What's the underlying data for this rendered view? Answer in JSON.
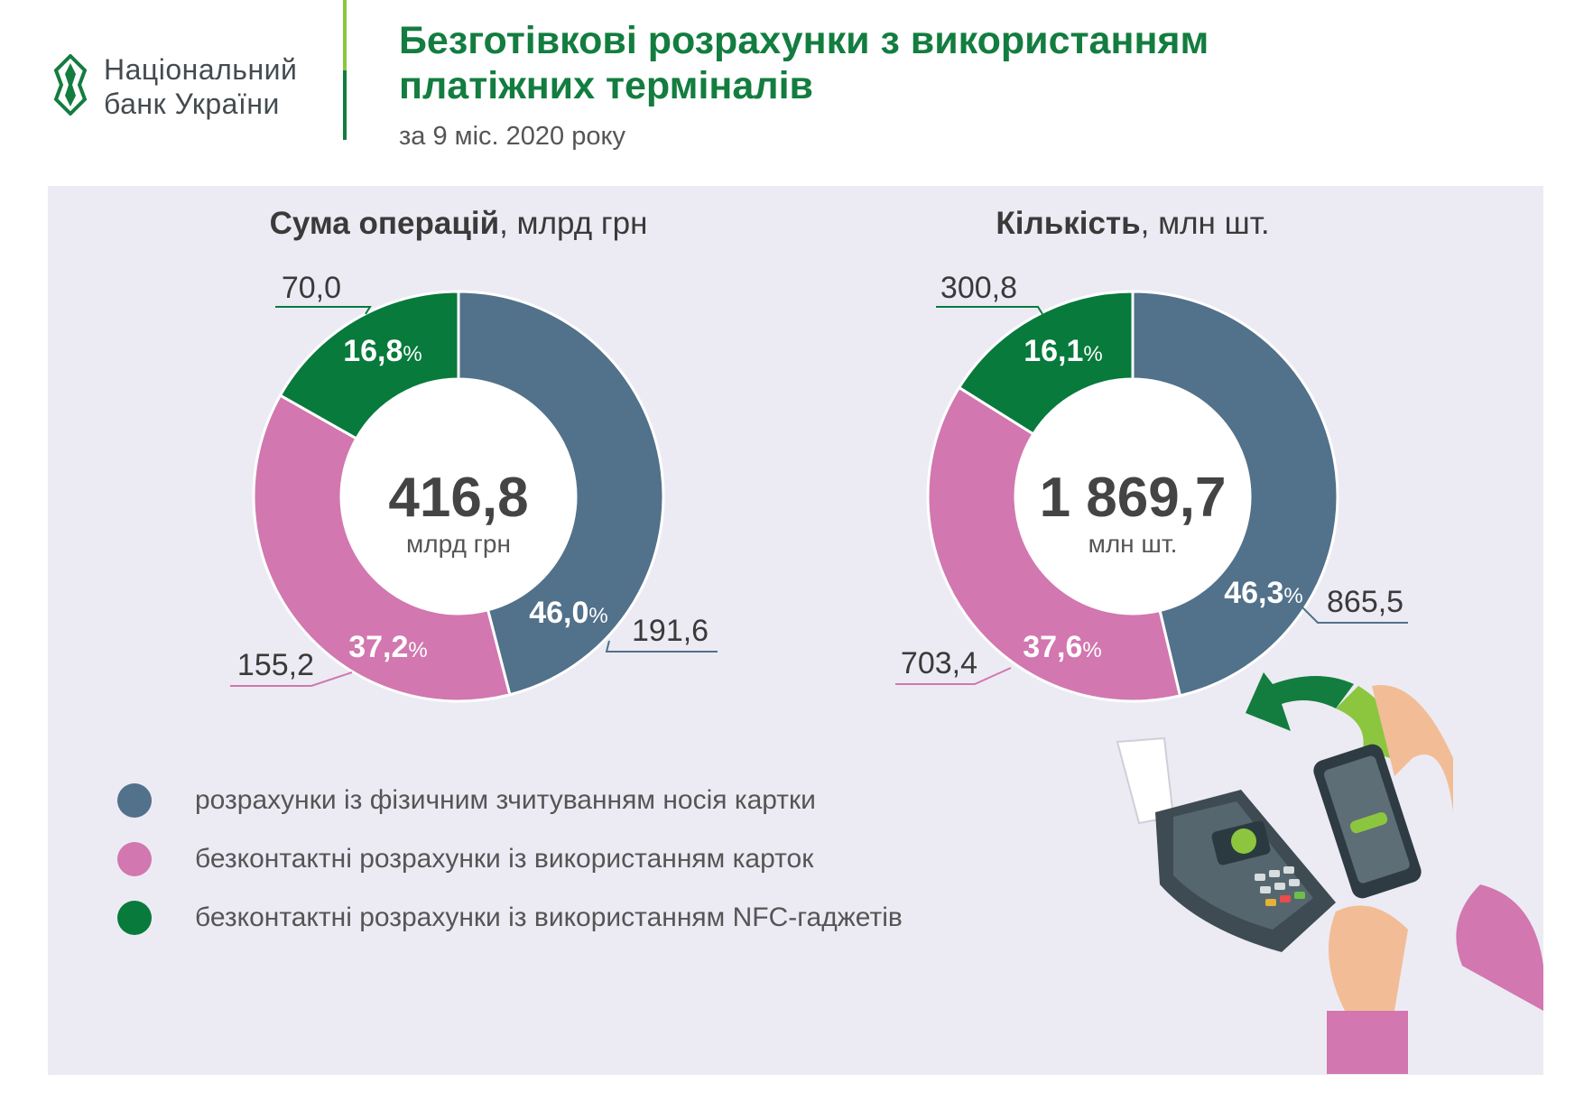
{
  "logo": {
    "line1": "Національний",
    "line2": "банк України"
  },
  "header": {
    "title_line1": "Безготівкові розрахунки з використанням",
    "title_line2": "платіжних терміналів",
    "subtitle": "за 9 міс. 2020 року"
  },
  "colors": {
    "physical": "#52718a",
    "contactless_cards": "#d277af",
    "nfc": "#077a3c",
    "brand_green": "#137d3f"
  },
  "legend": [
    {
      "label": "розрахунки із фізичним зчитуванням носія картки",
      "color": "#52718a"
    },
    {
      "label": "безконтактні розрахунки із використанням карток",
      "color": "#d277af"
    },
    {
      "label": "безконтактні розрахунки із використанням NFC-гаджетів",
      "color": "#077a3c"
    }
  ],
  "chart_data": [
    {
      "type": "pie",
      "title_bold": "Сума операцій",
      "title_unit": ", млрд грн",
      "center_value": "416,8",
      "center_unit": "млрд грн",
      "categories": [
        "розрахунки із фізичним зчитуванням носія картки",
        "безконтактні розрахунки із використанням карток",
        "безконтактні розрахунки із використанням NFC-гаджетів"
      ],
      "values": [
        191.6,
        155.2,
        70.0
      ],
      "value_labels": [
        "191,6",
        "155,2",
        "70,0"
      ],
      "percents": [
        46.0,
        37.2,
        16.8
      ],
      "percent_labels": [
        "46,0",
        "37,2",
        "16,8"
      ],
      "colors": [
        "#52718a",
        "#d277af",
        "#077a3c"
      ]
    },
    {
      "type": "pie",
      "title_bold": "Кількість",
      "title_unit": ", млн шт.",
      "center_value": "1 869,7",
      "center_unit": "млн шт.",
      "categories": [
        "розрахунки із фізичним зчитуванням носія картки",
        "безконтактні розрахунки із використанням карток",
        "безконтактні розрахунки із використанням NFC-гаджетів"
      ],
      "values": [
        865.5,
        703.4,
        300.8
      ],
      "value_labels": [
        "865,5",
        "703,4",
        "300,8"
      ],
      "percents": [
        46.3,
        37.6,
        16.1
      ],
      "percent_labels": [
        "46,3",
        "37,6",
        "16,1"
      ],
      "colors": [
        "#52718a",
        "#d277af",
        "#077a3c"
      ]
    }
  ]
}
